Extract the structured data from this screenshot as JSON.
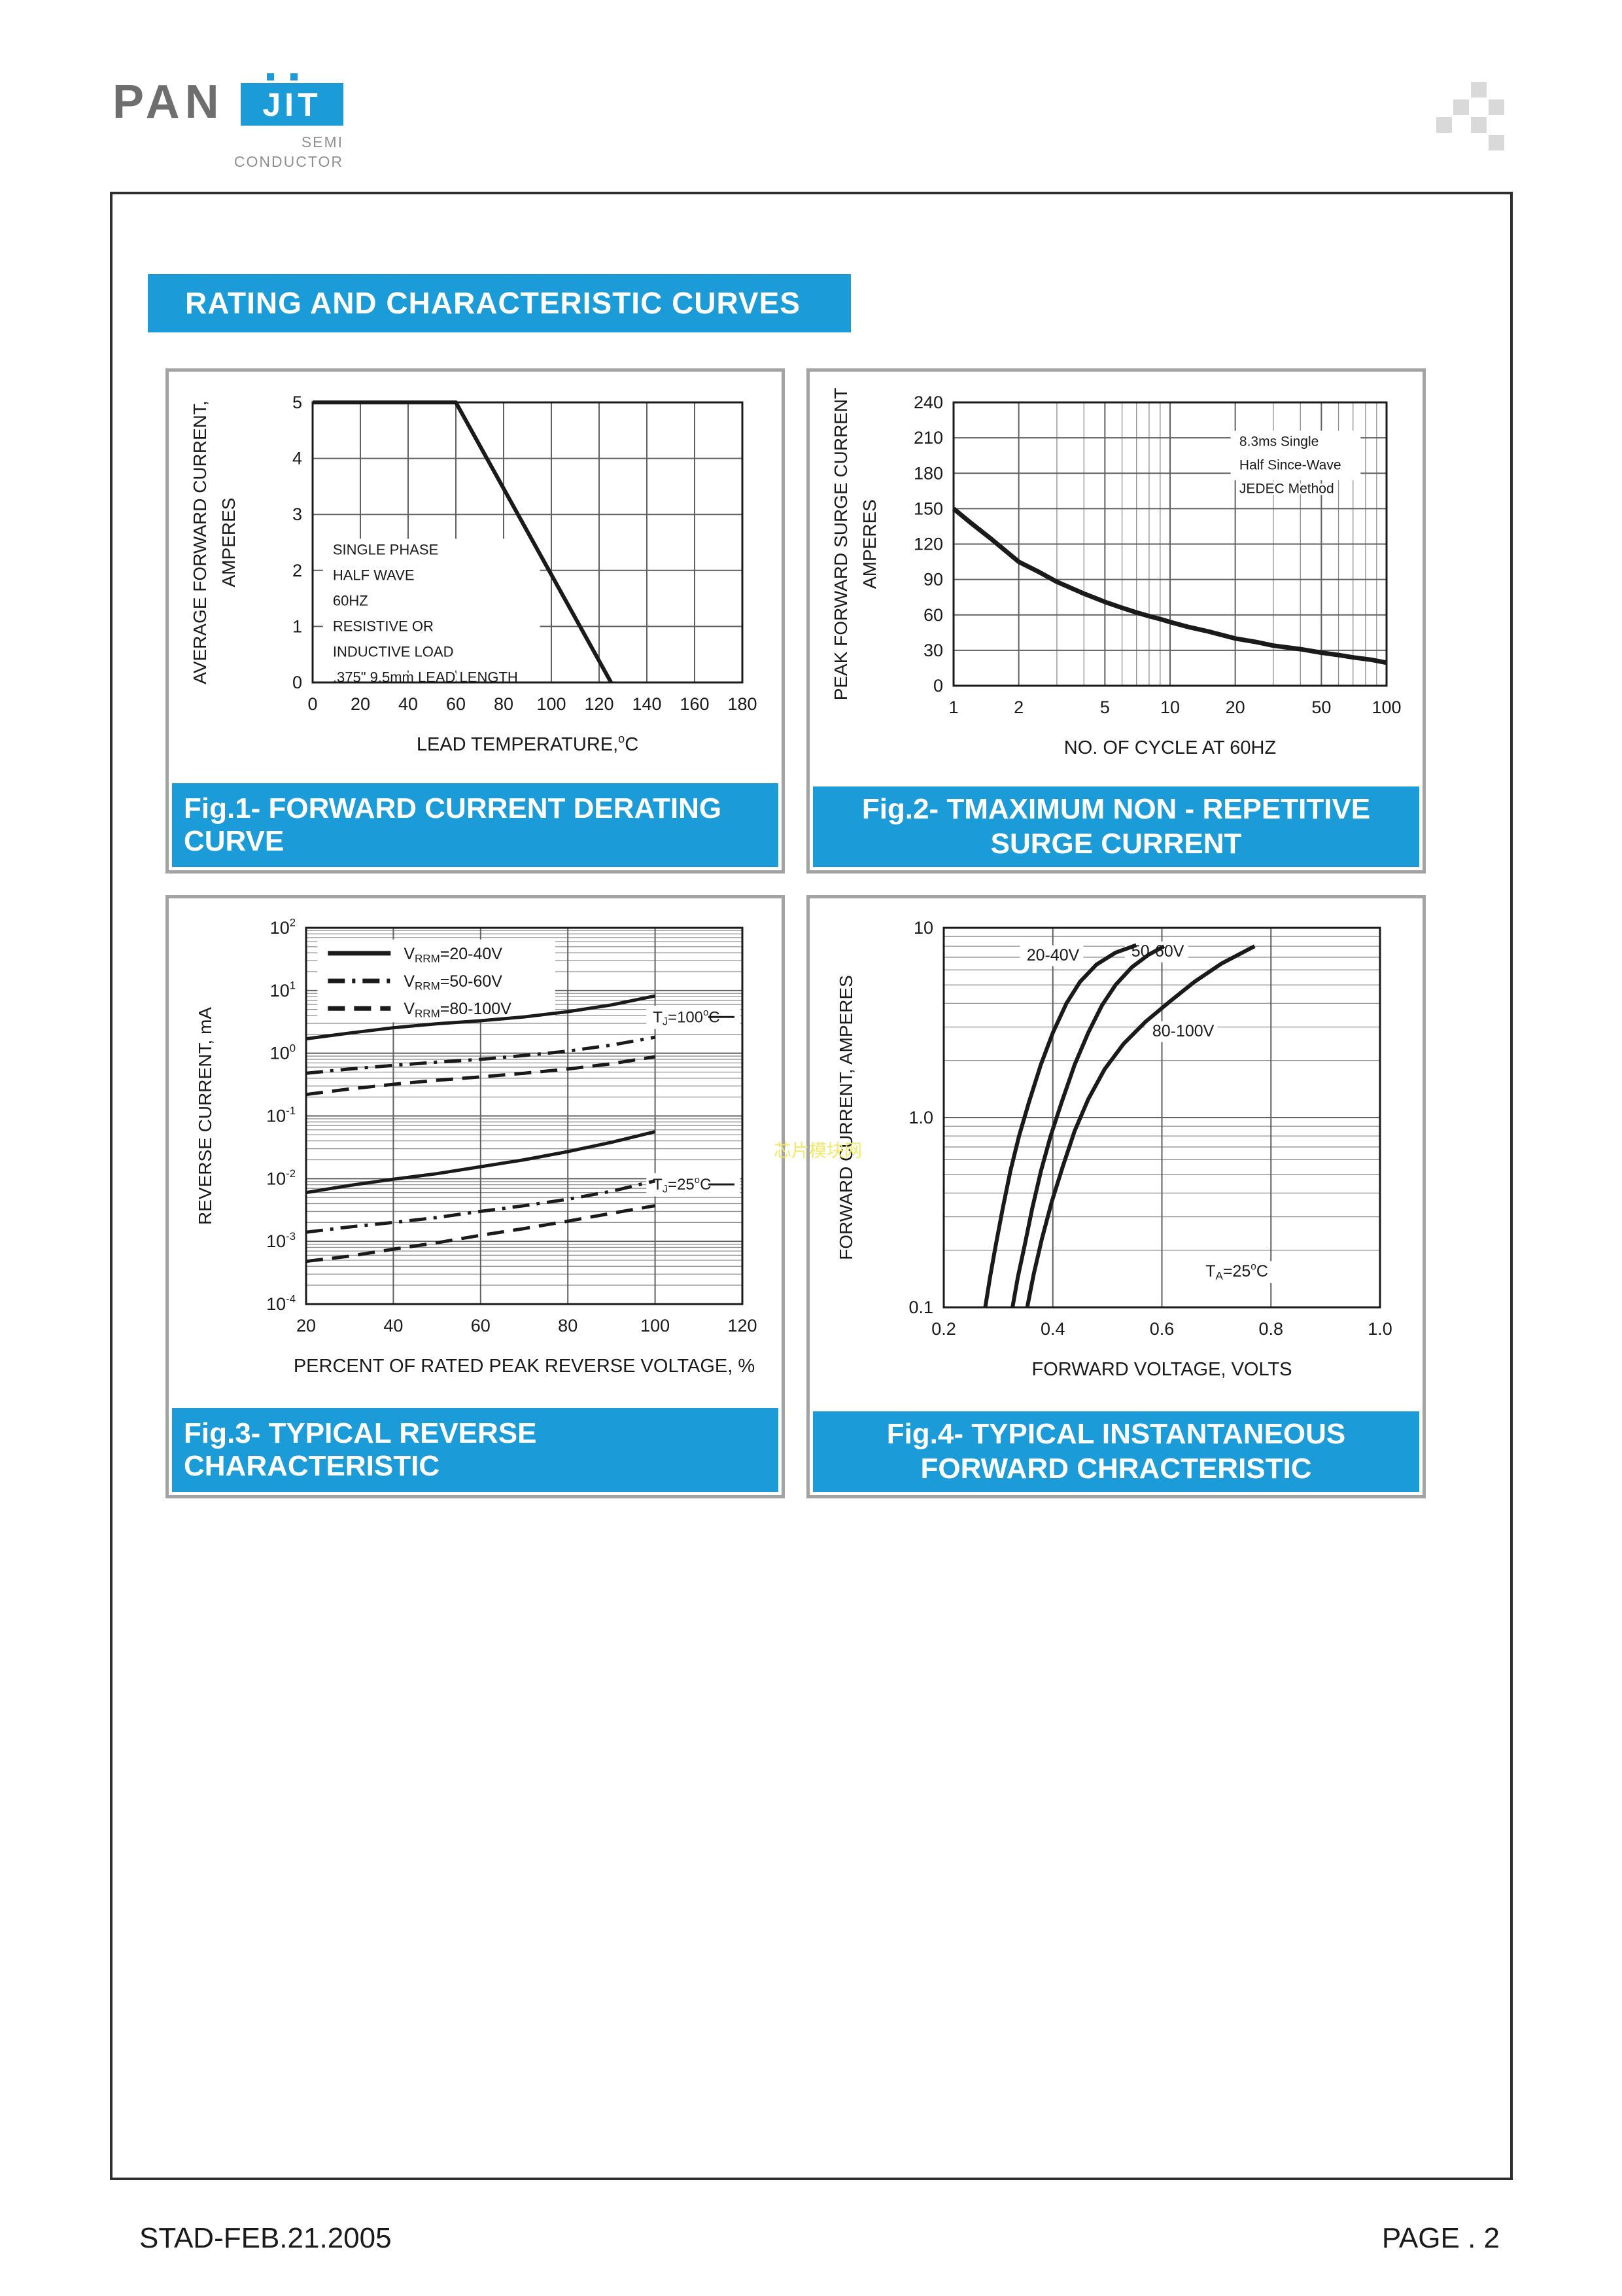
{
  "title": "RATING AND CHARACTERISTIC CURVES",
  "logo": {
    "pan": "PAN",
    "jit": "JIT",
    "semi": "SEMI",
    "conductor": "CONDUCTOR"
  },
  "footer": {
    "left": "STAD-FEB.21.2005",
    "right": "PAGE . 2"
  },
  "watermark": "芯片模块网",
  "colors": {
    "accent": "#1b9cd8",
    "ink": "#1a1a1a",
    "grid_major": "#606060",
    "grid_minor": "#8f8f8f",
    "panel_border": "#a3a3a3",
    "watermark": "#f2e95e"
  },
  "chart_data": [
    {
      "type": "line",
      "caption": "Fig.1- FORWARD CURRENT DERATING CURVE",
      "xlabel": "LEAD TEMPERATURE,^{o}C",
      "ylabel_lines": [
        "AVERAGE FORWARD CURRENT,",
        "AMPERES"
      ],
      "x_axis": {
        "scale": "linear",
        "min": 0,
        "max": 180,
        "ticks": [
          {
            "v": 0,
            "l": "0"
          },
          {
            "v": 20,
            "l": "20"
          },
          {
            "v": 40,
            "l": "40"
          },
          {
            "v": 60,
            "l": "60"
          },
          {
            "v": 80,
            "l": "80"
          },
          {
            "v": 100,
            "l": "100"
          },
          {
            "v": 120,
            "l": "120"
          },
          {
            "v": 140,
            "l": "140"
          },
          {
            "v": 160,
            "l": "160"
          },
          {
            "v": 180,
            "l": "180"
          }
        ]
      },
      "y_axis": {
        "scale": "linear",
        "min": 0,
        "max": 5,
        "ticks": [
          {
            "v": 0,
            "l": "0"
          },
          {
            "v": 1,
            "l": "1"
          },
          {
            "v": 2,
            "l": "2"
          },
          {
            "v": 3,
            "l": "3"
          },
          {
            "v": 4,
            "l": "4"
          },
          {
            "v": 5,
            "l": "5"
          }
        ]
      },
      "series": [
        {
          "name": "derating-curve",
          "style": "solid",
          "width": 6,
          "points": [
            [
              0,
              5
            ],
            [
              60,
              5
            ],
            [
              125,
              0
            ]
          ]
        }
      ],
      "annotations": [
        {
          "fx": 0.047,
          "fy": 0.525,
          "size": 22,
          "lh": 39,
          "lines": [
            "SINGLE  PHASE",
            "HALF WAVE",
            "60HZ",
            "RESISTIVE OR",
            "INDUCTIVE LOAD",
            ".375\"  9.5mm  LEAD  LENGTH"
          ],
          "bg": {
            "fx": 0.024,
            "fy": 0.487,
            "fw": 0.505,
            "fh": 0.47
          }
        }
      ]
    },
    {
      "type": "line",
      "caption": "Fig.2- TMAXIMUM NON - REPETITIVE SURGE CURRENT",
      "xlabel": "NO. OF CYCLE AT 60HZ",
      "ylabel_lines": [
        "PEAK FORWARD SURGE CURRENT",
        "AMPERES"
      ],
      "x_axis": {
        "scale": "log",
        "min": 1,
        "max": 100,
        "log_minors": true,
        "ticks": [
          {
            "v": 1,
            "l": "1"
          },
          {
            "v": 2,
            "l": "2"
          },
          {
            "v": 5,
            "l": "5"
          },
          {
            "v": 10,
            "l": "10"
          },
          {
            "v": 20,
            "l": "20"
          },
          {
            "v": 50,
            "l": "50"
          },
          {
            "v": 100,
            "l": "100"
          }
        ]
      },
      "y_axis": {
        "scale": "linear",
        "min": 0,
        "max": 240,
        "ticks": [
          {
            "v": 0,
            "l": "0"
          },
          {
            "v": 30,
            "l": "30"
          },
          {
            "v": 60,
            "l": "60"
          },
          {
            "v": 90,
            "l": "90"
          },
          {
            "v": 120,
            "l": "120"
          },
          {
            "v": 150,
            "l": "150"
          },
          {
            "v": 180,
            "l": "180"
          },
          {
            "v": 210,
            "l": "210"
          },
          {
            "v": 240,
            "l": "240"
          }
        ]
      },
      "series": [
        {
          "name": "surge-current-curve",
          "style": "solid",
          "width": 7,
          "points": [
            [
              1,
              150
            ],
            [
              1.2,
              138
            ],
            [
              1.5,
              124
            ],
            [
              2,
              105
            ],
            [
              2.5,
              96
            ],
            [
              3,
              88
            ],
            [
              4,
              78
            ],
            [
              5,
              71
            ],
            [
              6,
              66
            ],
            [
              7,
              62
            ],
            [
              8,
              59
            ],
            [
              9,
              56.5
            ],
            [
              10,
              54
            ],
            [
              12,
              50
            ],
            [
              15,
              46
            ],
            [
              20,
              40
            ],
            [
              25,
              37
            ],
            [
              30,
              34
            ],
            [
              40,
              31
            ],
            [
              50,
              28
            ],
            [
              60,
              26
            ],
            [
              70,
              24
            ],
            [
              85,
              22
            ],
            [
              100,
              19.5
            ]
          ]
        }
      ],
      "annotations": [
        {
          "fx": 0.66,
          "fy": 0.135,
          "size": 21,
          "lh": 36,
          "lines": [
            "8.3ms Single",
            "Half Since-Wave",
            "JEDEC Method"
          ],
          "bg": {
            "fx": 0.64,
            "fy": 0.1,
            "fw": 0.3,
            "fh": 0.175
          }
        }
      ]
    },
    {
      "type": "line",
      "caption": "Fig.3- TYPICAL REVERSE CHARACTERISTIC",
      "xlabel": "PERCENT OF RATED PEAK REVERSE VOLTAGE, %",
      "ylabel_lines": [
        "REVERSE CURRENT, mA"
      ],
      "x_axis": {
        "scale": "linear",
        "min": 20,
        "max": 120,
        "ticks": [
          {
            "v": 20,
            "l": "20"
          },
          {
            "v": 40,
            "l": "40"
          },
          {
            "v": 60,
            "l": "60"
          },
          {
            "v": 80,
            "l": "80"
          },
          {
            "v": 100,
            "l": "100"
          },
          {
            "v": 120,
            "l": "120"
          }
        ]
      },
      "y_axis": {
        "scale": "log",
        "min": 0.0001,
        "max": 100,
        "log_minors": true,
        "ticks": [
          {
            "v": 100,
            "l": "10^{2}"
          },
          {
            "v": 10,
            "l": "10^{1}"
          },
          {
            "v": 1,
            "l": "10^{0}"
          },
          {
            "v": 0.1,
            "l": "10^{-1}"
          },
          {
            "v": 0.01,
            "l": "10^{-2}"
          },
          {
            "v": 0.001,
            "l": "10^{-3}"
          },
          {
            "v": 0.0001,
            "l": "10^{-4}"
          }
        ]
      },
      "legend": {
        "fx": 0.026,
        "fy": 0.031,
        "fw": 0.545,
        "fh": 0.22,
        "entries": [
          {
            "style": "solid",
            "label": "V_{RRM}=20-40V"
          },
          {
            "style": "dashdot",
            "label": "V_{RRM}=50-60V"
          },
          {
            "style": "dashed",
            "label": "V_{RRM}=80-100V"
          }
        ]
      },
      "series": [
        {
          "name": "20-40V-Tj100",
          "style": "solid",
          "width": 5,
          "points": [
            [
              20,
              1.7
            ],
            [
              30,
              2.1
            ],
            [
              40,
              2.55
            ],
            [
              50,
              2.95
            ],
            [
              60,
              3.3
            ],
            [
              70,
              3.8
            ],
            [
              80,
              4.6
            ],
            [
              90,
              5.9
            ],
            [
              100,
              8.2
            ]
          ]
        },
        {
          "name": "50-60V-Tj100",
          "style": "dashdot",
          "width": 5,
          "points": [
            [
              20,
              0.48
            ],
            [
              30,
              0.56
            ],
            [
              40,
              0.64
            ],
            [
              50,
              0.72
            ],
            [
              60,
              0.8
            ],
            [
              70,
              0.92
            ],
            [
              80,
              1.08
            ],
            [
              90,
              1.35
            ],
            [
              100,
              1.8
            ]
          ]
        },
        {
          "name": "80-100V-Tj100",
          "style": "dashed",
          "width": 5,
          "points": [
            [
              20,
              0.22
            ],
            [
              30,
              0.27
            ],
            [
              40,
              0.32
            ],
            [
              50,
              0.37
            ],
            [
              60,
              0.42
            ],
            [
              70,
              0.48
            ],
            [
              80,
              0.56
            ],
            [
              90,
              0.68
            ],
            [
              100,
              0.88
            ]
          ]
        },
        {
          "name": "20-40V-Tj25",
          "style": "solid",
          "width": 5,
          "points": [
            [
              20,
              0.006
            ],
            [
              30,
              0.0078
            ],
            [
              40,
              0.0098
            ],
            [
              50,
              0.012
            ],
            [
              60,
              0.0155
            ],
            [
              70,
              0.02
            ],
            [
              80,
              0.027
            ],
            [
              90,
              0.038
            ],
            [
              100,
              0.056
            ]
          ]
        },
        {
          "name": "50-60V-Tj25",
          "style": "dashdot",
          "width": 5,
          "points": [
            [
              20,
              0.0014
            ],
            [
              30,
              0.0017
            ],
            [
              40,
              0.002
            ],
            [
              50,
              0.0024
            ],
            [
              60,
              0.003
            ],
            [
              70,
              0.0037
            ],
            [
              80,
              0.0047
            ],
            [
              90,
              0.0063
            ],
            [
              100,
              0.0092
            ]
          ]
        },
        {
          "name": "80-100V-Tj25",
          "style": "dashed",
          "width": 5,
          "points": [
            [
              20,
              0.00048
            ],
            [
              30,
              0.00058
            ],
            [
              40,
              0.00075
            ],
            [
              50,
              0.00095
            ],
            [
              60,
              0.00125
            ],
            [
              70,
              0.0016
            ],
            [
              80,
              0.0021
            ],
            [
              90,
              0.0028
            ],
            [
              100,
              0.0037
            ]
          ]
        }
      ],
      "annotations": [
        {
          "fx": 0.795,
          "fy": 0.237,
          "size": 24,
          "lh": 40,
          "dash_right": true,
          "lines": [
            "T_{J}=100^{o}C"
          ],
          "bg": {
            "fx": 0.78,
            "fy": 0.207,
            "fw": 0.215,
            "fh": 0.062
          }
        },
        {
          "fx": 0.795,
          "fy": 0.682,
          "size": 24,
          "lh": 40,
          "dash_right": true,
          "lines": [
            "T_{J}=25^{o}C"
          ],
          "bg": {
            "fx": 0.78,
            "fy": 0.652,
            "fw": 0.215,
            "fh": 0.062
          }
        }
      ]
    },
    {
      "type": "line",
      "caption": "Fig.4- TYPICAL INSTANTANEOUS FORWARD CHRACTERISTIC",
      "xlabel": "FORWARD VOLTAGE, VOLTS",
      "ylabel_lines": [
        "FORWARD CURRENT, AMPERES"
      ],
      "x_axis": {
        "scale": "linear",
        "min": 0.2,
        "max": 1.0,
        "ticks": [
          {
            "v": 0.2,
            "l": "0.2"
          },
          {
            "v": 0.4,
            "l": "0.4"
          },
          {
            "v": 0.6,
            "l": "0.6"
          },
          {
            "v": 0.8,
            "l": "0.8"
          },
          {
            "v": 1.0,
            "l": "1.0"
          }
        ]
      },
      "y_axis": {
        "scale": "log",
        "min": 0.1,
        "max": 10,
        "log_minors": true,
        "ticks": [
          {
            "v": 10,
            "l": "10"
          },
          {
            "v": 1,
            "l": "1.0"
          },
          {
            "v": 0.1,
            "l": "0.1"
          }
        ]
      },
      "series": [
        {
          "name": "20-40V",
          "style": "solid",
          "width": 6,
          "points": [
            [
              0.276,
              0.1
            ],
            [
              0.285,
              0.145
            ],
            [
              0.295,
              0.21
            ],
            [
              0.308,
              0.33
            ],
            [
              0.322,
              0.52
            ],
            [
              0.338,
              0.8
            ],
            [
              0.356,
              1.2
            ],
            [
              0.378,
              1.9
            ],
            [
              0.4,
              2.8
            ],
            [
              0.425,
              4.0
            ],
            [
              0.45,
              5.2
            ],
            [
              0.48,
              6.4
            ],
            [
              0.515,
              7.4
            ],
            [
              0.553,
              8.1
            ]
          ]
        },
        {
          "name": "50-60V",
          "style": "solid",
          "width": 6,
          "points": [
            [
              0.326,
              0.1
            ],
            [
              0.336,
              0.145
            ],
            [
              0.348,
              0.21
            ],
            [
              0.362,
              0.33
            ],
            [
              0.378,
              0.52
            ],
            [
              0.396,
              0.8
            ],
            [
              0.416,
              1.2
            ],
            [
              0.44,
              1.9
            ],
            [
              0.465,
              2.8
            ],
            [
              0.49,
              3.9
            ],
            [
              0.515,
              5.0
            ],
            [
              0.545,
              6.2
            ],
            [
              0.575,
              7.2
            ],
            [
              0.604,
              8.0
            ]
          ]
        },
        {
          "name": "80-100V",
          "style": "solid",
          "width": 6,
          "points": [
            [
              0.353,
              0.1
            ],
            [
              0.365,
              0.15
            ],
            [
              0.38,
              0.23
            ],
            [
              0.398,
              0.36
            ],
            [
              0.418,
              0.55
            ],
            [
              0.44,
              0.85
            ],
            [
              0.465,
              1.25
            ],
            [
              0.495,
              1.8
            ],
            [
              0.53,
              2.45
            ],
            [
              0.57,
              3.2
            ],
            [
              0.615,
              4.1
            ],
            [
              0.66,
              5.2
            ],
            [
              0.71,
              6.5
            ],
            [
              0.77,
              8.0
            ]
          ]
        }
      ],
      "annotations": [
        {
          "fx": 0.19,
          "fy": 0.072,
          "size": 25,
          "lh": 40,
          "lines": [
            "20-40V"
          ],
          "bg": {
            "fx": 0.175,
            "fy": 0.046,
            "fw": 0.145,
            "fh": 0.055
          }
        },
        {
          "fx": 0.43,
          "fy": 0.062,
          "size": 25,
          "lh": 40,
          "lines": [
            "50-60V"
          ],
          "bg": {
            "fx": 0.415,
            "fy": 0.036,
            "fw": 0.145,
            "fh": 0.055
          }
        },
        {
          "fx": 0.478,
          "fy": 0.272,
          "size": 25,
          "lh": 40,
          "lines": [
            "80-100V"
          ],
          "bg": {
            "fx": 0.462,
            "fy": 0.246,
            "fw": 0.165,
            "fh": 0.055
          }
        },
        {
          "fx": 0.6,
          "fy": 0.905,
          "size": 25,
          "lh": 40,
          "lines": [
            "T_{A}=25^{o}C"
          ],
          "bg": {
            "fx": 0.585,
            "fy": 0.878,
            "fw": 0.2,
            "fh": 0.058
          }
        }
      ]
    }
  ]
}
